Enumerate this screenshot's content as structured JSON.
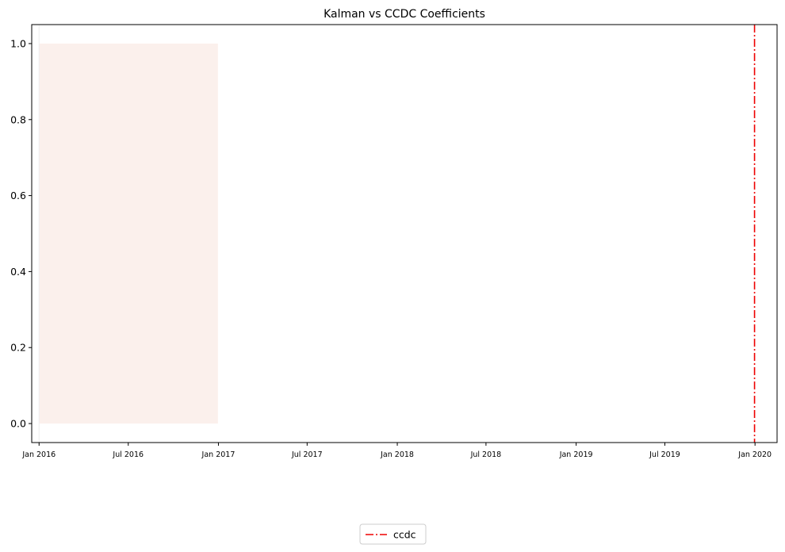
{
  "chart_data": {
    "type": "line",
    "title": "Kalman vs CCDC Coefficients",
    "xlabel": "",
    "ylabel": "",
    "x_axis": {
      "kind": "date",
      "range": [
        "2015-12-17",
        "2020-02-15"
      ],
      "ticks": [
        {
          "date": "2016-01-01",
          "label": "Jan 2016"
        },
        {
          "date": "2016-07-01",
          "label": "Jul 2016"
        },
        {
          "date": "2017-01-01",
          "label": "Jan 2017"
        },
        {
          "date": "2017-07-01",
          "label": "Jul 2017"
        },
        {
          "date": "2018-01-01",
          "label": "Jan 2018"
        },
        {
          "date": "2018-07-01",
          "label": "Jul 2018"
        },
        {
          "date": "2019-01-01",
          "label": "Jan 2019"
        },
        {
          "date": "2019-07-01",
          "label": "Jul 2019"
        },
        {
          "date": "2020-01-01",
          "label": "Jan 2020"
        }
      ]
    },
    "y_axis": {
      "range": [
        -0.05,
        1.05
      ],
      "ticks": [
        {
          "value": 0.0,
          "label": "0.0"
        },
        {
          "value": 0.2,
          "label": "0.2"
        },
        {
          "value": 0.4,
          "label": "0.4"
        },
        {
          "value": 0.6,
          "label": "0.6"
        },
        {
          "value": 0.8,
          "label": "0.8"
        },
        {
          "value": 1.0,
          "label": "1.0"
        }
      ]
    },
    "grid": false,
    "shaded_regions": [
      {
        "x_start": "2016-01-01",
        "x_end": "2016-12-31",
        "y_start": 0.0,
        "y_end": 1.0,
        "color": "#fbf0ec"
      }
    ],
    "vertical_lines": [
      {
        "x": "2016-01-01",
        "color": "#eeeeee",
        "style": "solid"
      },
      {
        "x": "2019-12-31",
        "color": "#ee0000",
        "style": "dashdot",
        "name": "ccdc"
      }
    ],
    "legend": {
      "placement": "bottom-center",
      "entries": [
        {
          "label": "ccdc",
          "color": "#ee0000",
          "style": "dashdot"
        }
      ]
    }
  }
}
